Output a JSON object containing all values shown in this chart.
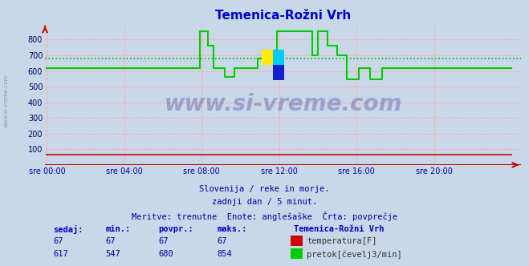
{
  "title": "Temenica-Rožni Vrh",
  "title_color": "#0000cc",
  "bg_color": "#c8d8e8",
  "grid_color": "#ffaaaa",
  "xlabel_color": "#0000bb",
  "ylabel_color": "#000066",
  "ylim": [
    0,
    900
  ],
  "yticks": [
    100,
    200,
    300,
    400,
    500,
    600,
    700,
    800
  ],
  "xtick_labels": [
    "sre 00:00",
    "sre 04:00",
    "sre 08:00",
    "sre 12:00",
    "sre 16:00",
    "sre 20:00"
  ],
  "xtick_positions": [
    0,
    4,
    8,
    12,
    16,
    20
  ],
  "xlim": [
    -0.1,
    24.5
  ],
  "subtitle1": "Slovenija / reke in morje.",
  "subtitle2": "zadnji dan / 5 minut.",
  "subtitle3": "Meritve: trenutne  Enote: anglešaške  Črta: povprečje",
  "subtitle_color": "#0000aa",
  "watermark": "www.si-vreme.com",
  "watermark_color": "#1a1a8c",
  "avg_flow": 680,
  "avg_flow_color": "#00bb00",
  "temp_color": "#cc0000",
  "flow_color": "#00cc00",
  "flow_times": [
    0,
    7.9,
    7.9,
    8.3,
    8.3,
    8.6,
    8.6,
    9.2,
    9.2,
    9.7,
    9.7,
    10.4,
    10.4,
    10.9,
    10.9,
    11.3,
    11.3,
    11.9,
    11.9,
    13.7,
    13.7,
    14.0,
    14.0,
    14.5,
    14.5,
    15.0,
    15.0,
    15.5,
    15.5,
    16.1,
    16.1,
    16.7,
    16.7,
    17.3,
    17.3,
    17.8,
    17.8,
    24
  ],
  "flow_values": [
    617,
    617,
    854,
    854,
    760,
    760,
    617,
    617,
    560,
    560,
    617,
    617,
    620,
    620,
    680,
    680,
    700,
    700,
    854,
    854,
    700,
    700,
    854,
    854,
    760,
    760,
    700,
    700,
    547,
    547,
    617,
    617,
    547,
    547,
    617,
    617,
    617,
    617
  ],
  "temp_times": [
    0,
    24
  ],
  "temp_values": [
    67,
    67
  ],
  "table_headers": [
    "sedaj:",
    "min.:",
    "povpr.:",
    "maks.:"
  ],
  "table_values_temp": [
    "67",
    "67",
    "67",
    "67"
  ],
  "table_values_flow": [
    "617",
    "547",
    "680",
    "854"
  ],
  "legend_title": "Temenica-Rožni Vrh",
  "legend_items": [
    "temperatura[F]",
    "pretok[čevelj3/min]"
  ],
  "legend_colors": [
    "#cc0000",
    "#00cc00"
  ],
  "sidebar_text": "www.si-vreme.com",
  "sidebar_color": "#999999",
  "logo_colors": [
    "#ffee00",
    "#00ccff",
    "#1122cc"
  ]
}
